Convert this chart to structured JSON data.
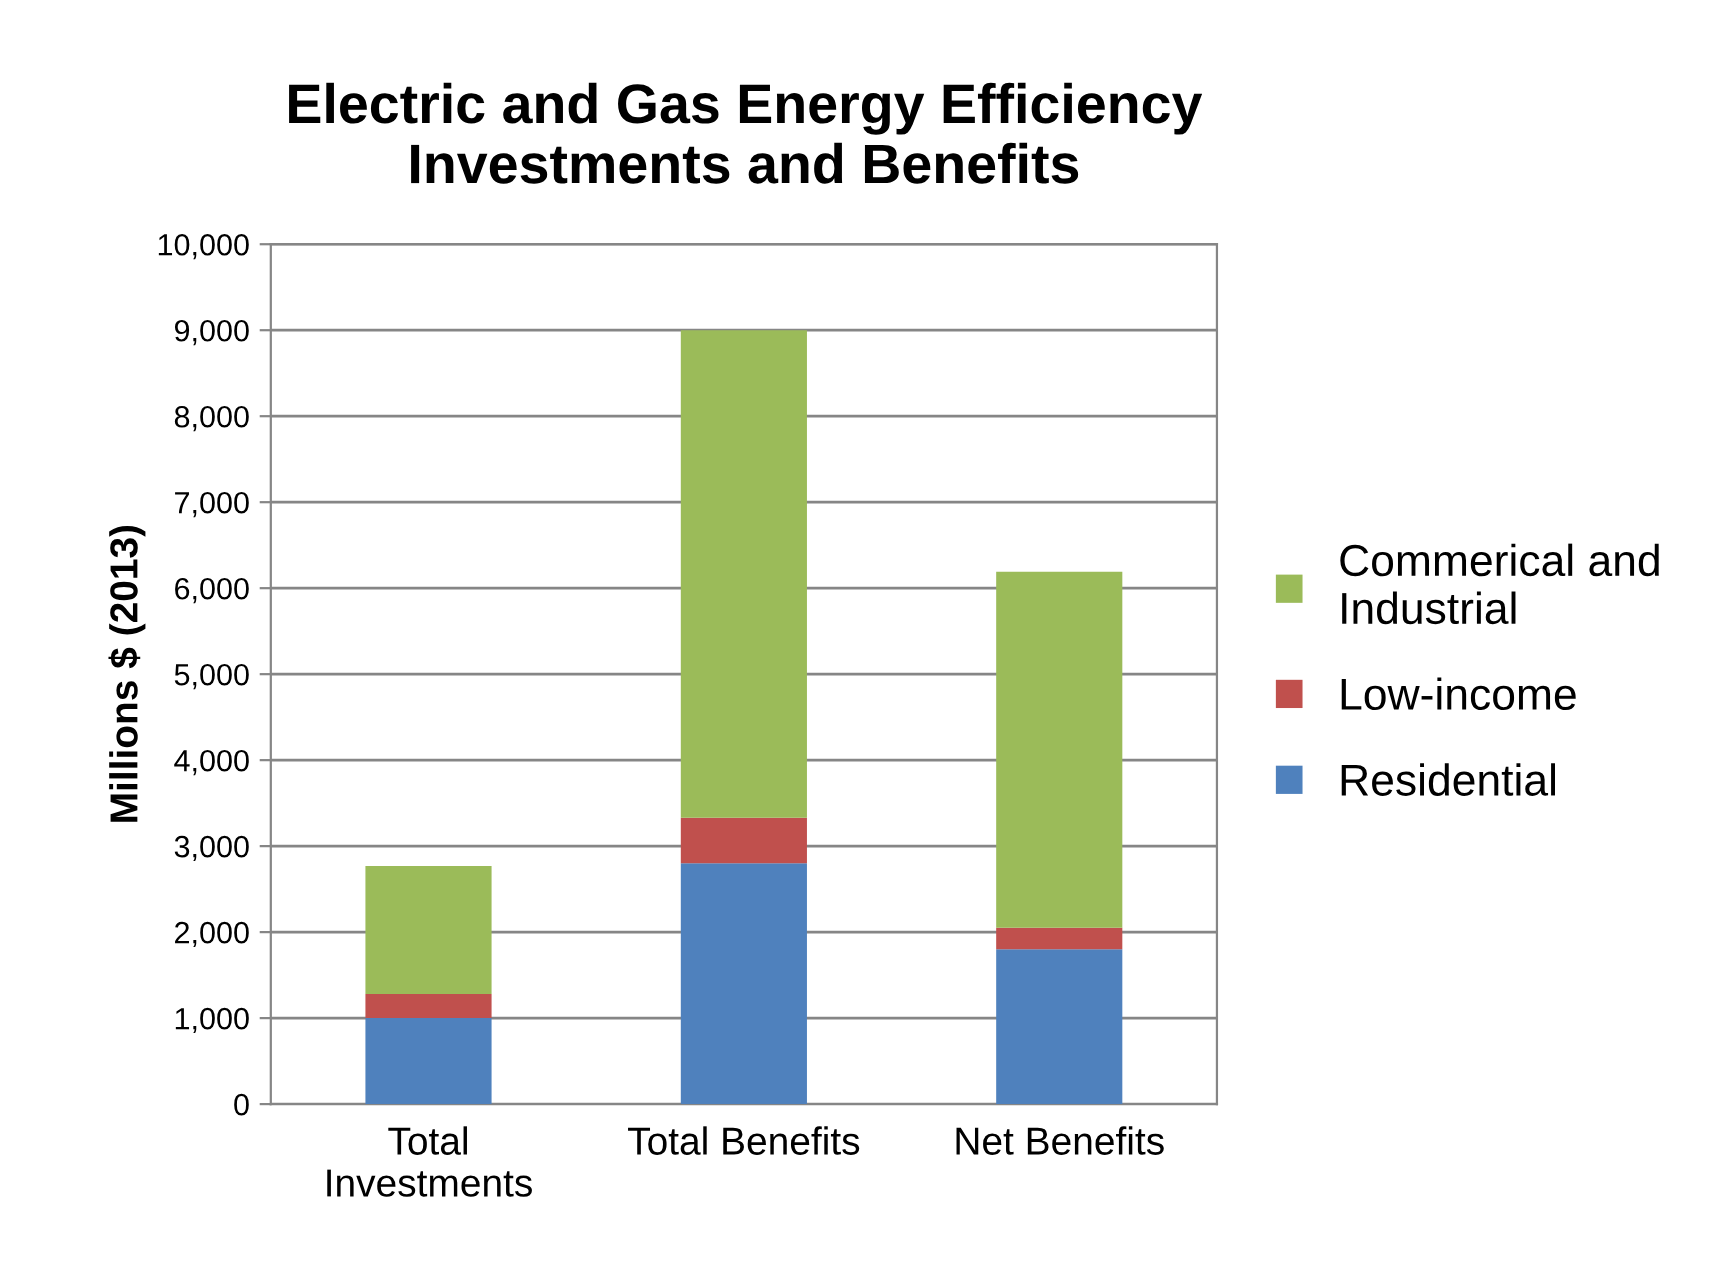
{
  "chart_data": {
    "type": "bar",
    "title": "Electric and Gas Energy Efficiency\nInvestments and Benefits",
    "ylabel": "Millions $ (2013)",
    "categories": [
      "Total\nInvestments",
      "Total Benefits",
      "Net Benefits"
    ],
    "stacked": true,
    "series": [
      {
        "name": "Residential",
        "color": "#4f81bd",
        "values": [
          1000,
          2800,
          1800
        ]
      },
      {
        "name": "Low-income",
        "color": "#c0504d",
        "values": [
          280,
          530,
          250
        ]
      },
      {
        "name": "Commerical and\nIndustrial",
        "color": "#9bbb59",
        "values": [
          1490,
          5670,
          4140
        ]
      }
    ],
    "ylim": [
      0,
      10000
    ],
    "yticks": [
      {
        "value": 0,
        "label": "0"
      },
      {
        "value": 1000,
        "label": "1,000"
      },
      {
        "value": 2000,
        "label": "2,000"
      },
      {
        "value": 3000,
        "label": "3,000"
      },
      {
        "value": 4000,
        "label": "4,000"
      },
      {
        "value": 5000,
        "label": "5,000"
      },
      {
        "value": 6000,
        "label": "6,000"
      },
      {
        "value": 7000,
        "label": "7,000"
      },
      {
        "value": 8000,
        "label": "8,000"
      },
      {
        "value": 9000,
        "label": "9,000"
      },
      {
        "value": 10000,
        "label": "10,000"
      }
    ],
    "grid": "y",
    "legend": "right"
  }
}
